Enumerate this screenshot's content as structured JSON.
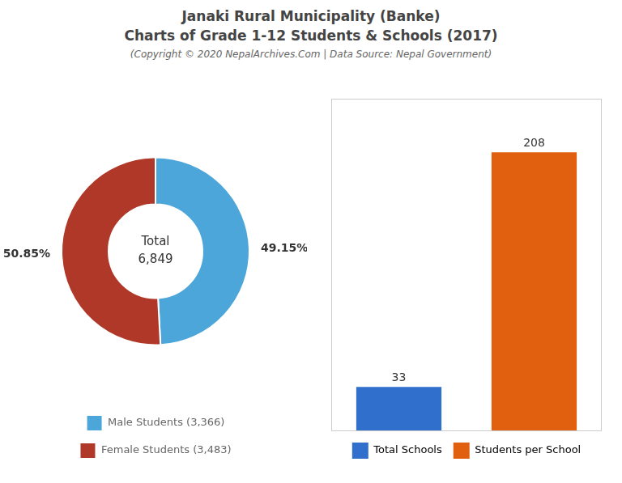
{
  "chart_data": [
    {
      "type": "doughnut",
      "title": [
        "Janaki Rural Municipality (Banke)",
        "Charts of Grade 1-12 Students & Schools (2017)"
      ],
      "subtitle": "(Copyright © 2020 NepalArchives.Com | Data Source: Nepal Government)",
      "annotations": [
        "Total",
        "6,849"
      ],
      "categories": [
        "Male Students (3,366)",
        "Female Students (3,483)"
      ],
      "values": [
        49.15,
        50.85
      ],
      "value_labels": [
        "49.15%",
        "50.85%"
      ],
      "data_labels": true,
      "colors": [
        "#4da6d9",
        "#b03828"
      ],
      "legend": "bottom"
    },
    {
      "type": "bar",
      "categories": [
        "Total Schools",
        "Students per School"
      ],
      "values": [
        33,
        208
      ],
      "colors": [
        "#3070cc",
        "#e06010"
      ],
      "data_labels": true,
      "ylim": [
        0,
        248
      ],
      "tick_labels": false,
      "grid": false,
      "legend": "bottom"
    }
  ]
}
